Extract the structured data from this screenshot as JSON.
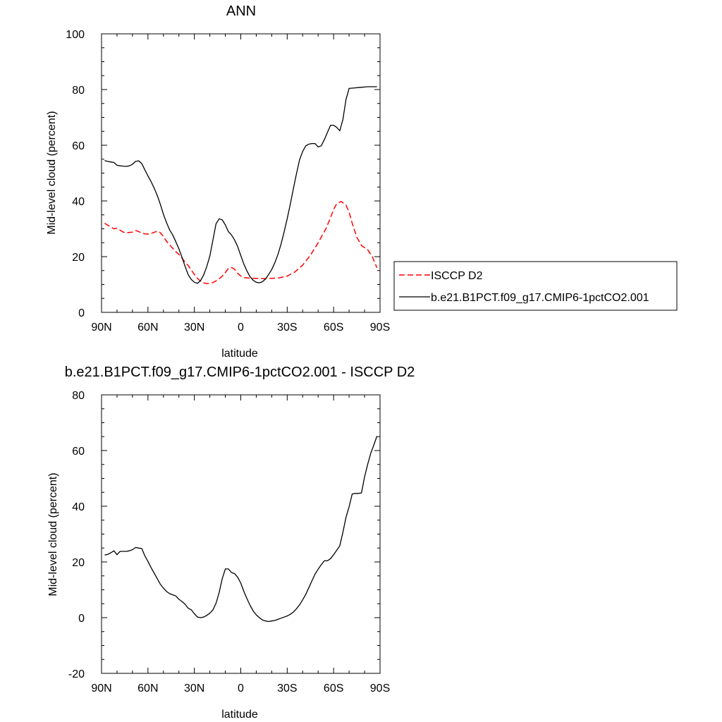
{
  "chart_data": [
    {
      "type": "line",
      "title": "ANN",
      "xlabel": "latitude",
      "ylabel": "Mid-level cloud (percent)",
      "xlim": [
        -90,
        90
      ],
      "ylim": [
        0,
        100
      ],
      "x_ticks": [
        -90,
        -60,
        -30,
        0,
        30,
        60,
        90
      ],
      "x_tick_labels": [
        "90N",
        "60N",
        "30N",
        "0",
        "30S",
        "60S",
        "90S"
      ],
      "y_ticks": [
        0,
        20,
        40,
        60,
        80,
        100
      ],
      "y_tick_labels": [
        "0",
        "20",
        "40",
        "60",
        "80",
        "100"
      ],
      "legend": "right",
      "series": [
        {
          "name": "ISCCP D2",
          "color": "#ff0000",
          "dash": "dashed",
          "x": [
            -88,
            -86,
            -84,
            -82,
            -80,
            -78,
            -76,
            -74,
            -72,
            -70,
            -68,
            -66,
            -64,
            -62,
            -60,
            -58,
            -56,
            -54,
            -52,
            -50,
            -48,
            -46,
            -44,
            -42,
            -40,
            -38,
            -36,
            -34,
            -32,
            -30,
            -28,
            -26,
            -24,
            -22,
            -20,
            -18,
            -16,
            -14,
            -12,
            -10,
            -8,
            -6,
            -4,
            -2,
            0,
            2,
            5,
            10,
            15,
            20,
            25,
            30,
            35,
            40,
            45,
            50,
            55,
            58,
            60,
            62,
            65,
            68,
            70,
            72,
            75,
            78,
            82,
            85,
            88
          ],
          "values": [
            32,
            31.3,
            30.6,
            30,
            30.2,
            29.5,
            28.8,
            28.6,
            28.7,
            28.8,
            29.4,
            29,
            28.4,
            28.2,
            28.1,
            28.3,
            28.7,
            29.2,
            28.6,
            27.2,
            25.5,
            24.2,
            23,
            21.8,
            20.8,
            19.5,
            18,
            16.8,
            15.2,
            13.6,
            12.2,
            11.2,
            10.6,
            10.3,
            10.4,
            10.7,
            11.3,
            12,
            13,
            14.3,
            15.8,
            16.1,
            15.5,
            14,
            13,
            12.5,
            12.3,
            12.2,
            12.1,
            12.2,
            12.4,
            13,
            14.5,
            17,
            20.5,
            25,
            30,
            34,
            37,
            39,
            39.8,
            38.5,
            36,
            32,
            27,
            24,
            22.5,
            20,
            16
          ]
        },
        {
          "name": "b.e21.B1PCT.f09_g17.CMIP6-1pctCO2.001",
          "color": "#000000",
          "dash": "solid",
          "x": [
            -88,
            -86,
            -84,
            -82,
            -80,
            -78,
            -76,
            -74,
            -72,
            -70,
            -68,
            -66,
            -64,
            -62,
            -60,
            -58,
            -56,
            -54,
            -52,
            -50,
            -48,
            -46,
            -44,
            -42,
            -40,
            -38,
            -36,
            -34,
            -32,
            -30,
            -28,
            -26,
            -24,
            -22,
            -20,
            -18,
            -16,
            -14,
            -12,
            -10,
            -8,
            -6,
            -4,
            -2,
            0,
            2,
            4,
            6,
            8,
            10,
            12,
            14,
            16,
            18,
            20,
            22,
            24,
            26,
            28,
            30,
            32,
            34,
            36,
            38,
            40,
            42,
            44,
            46,
            48,
            50,
            52,
            54,
            56,
            58,
            60,
            62,
            64,
            66,
            68,
            70,
            72,
            74,
            76,
            78,
            80,
            82,
            84,
            86,
            88
          ],
          "values": [
            54.5,
            54.2,
            54,
            53.8,
            52.8,
            52.6,
            52.5,
            52.4,
            52.6,
            53.2,
            54.2,
            54.4,
            53.4,
            51.2,
            49,
            47,
            44.6,
            42,
            38.8,
            35.2,
            32.2,
            29.6,
            27.8,
            25.4,
            22.8,
            19.8,
            16.5,
            13.5,
            11.8,
            10.8,
            10.4,
            11.4,
            13.4,
            16.4,
            20.2,
            26,
            31.8,
            33.6,
            33.2,
            31.4,
            29,
            27.8,
            26,
            23.6,
            20.4,
            17.3,
            14.8,
            12.8,
            11.5,
            10.8,
            10.6,
            11,
            12,
            13.6,
            15.4,
            17.8,
            20.8,
            24.5,
            28.8,
            33.6,
            38.8,
            44.4,
            49.8,
            54.8,
            57.8,
            59.8,
            60.4,
            60.6,
            60.6,
            59.4,
            59.8,
            62,
            64.6,
            67.2,
            67.2,
            66.4,
            65.2,
            69.2,
            76.4,
            80.4,
            80.5,
            80.6,
            80.7,
            80.8,
            80.9,
            81,
            81,
            81,
            81
          ]
        }
      ]
    },
    {
      "type": "line",
      "title": "b.e21.B1PCT.f09_g17.CMIP6-1pctCO2.001 - ISCCP D2",
      "xlabel": "latitude",
      "ylabel": "Mid-level cloud (percent)",
      "xlim": [
        -90,
        90
      ],
      "ylim": [
        -20,
        80
      ],
      "x_ticks": [
        -90,
        -60,
        -30,
        0,
        30,
        60,
        90
      ],
      "x_tick_labels": [
        "90N",
        "60N",
        "30N",
        "0",
        "30S",
        "60S",
        "90S"
      ],
      "y_ticks": [
        -20,
        0,
        20,
        40,
        60,
        80
      ],
      "y_tick_labels": [
        "-20",
        "0",
        "20",
        "40",
        "60",
        "80"
      ],
      "series": [
        {
          "color": "#000000",
          "dash": "solid",
          "x": [
            -88,
            -86,
            -84,
            -82,
            -80,
            -78,
            -76,
            -74,
            -72,
            -70,
            -68,
            -66,
            -64,
            -62,
            -60,
            -58,
            -56,
            -54,
            -52,
            -50,
            -48,
            -46,
            -44,
            -42,
            -40,
            -38,
            -36,
            -34,
            -32,
            -30,
            -28,
            -26,
            -24,
            -22,
            -20,
            -18,
            -16,
            -14,
            -12,
            -10,
            -8,
            -6,
            -4,
            -2,
            0,
            2,
            4,
            6,
            8,
            10,
            12,
            14,
            16,
            18,
            20,
            22,
            24,
            26,
            28,
            30,
            32,
            34,
            36,
            38,
            40,
            42,
            44,
            46,
            48,
            50,
            52,
            54,
            56,
            58,
            60,
            62,
            64,
            66,
            68,
            70,
            72,
            74,
            76,
            78,
            80,
            82,
            84,
            86,
            88
          ],
          "values": [
            22.5,
            22.7,
            23.3,
            24,
            22.6,
            23.8,
            23.8,
            23.8,
            24,
            24.4,
            25.2,
            25,
            24.8,
            22.2,
            20.2,
            18,
            16,
            14,
            12,
            10.6,
            9.4,
            8.6,
            8.2,
            7.8,
            6.6,
            5.8,
            4.8,
            3.4,
            2.8,
            1.4,
            0.2,
            0,
            0.2,
            0.8,
            1.6,
            2.8,
            5.2,
            9,
            14,
            17.5,
            17.5,
            16.2,
            15.8,
            14.5,
            12.4,
            9.4,
            6.8,
            4.4,
            2.4,
            1,
            0,
            -0.8,
            -1.2,
            -1.4,
            -1.2,
            -1,
            -0.6,
            -0.2,
            0.2,
            0.6,
            1.2,
            2,
            3.2,
            4.6,
            6.4,
            8.4,
            10.8,
            13.2,
            15.6,
            17.4,
            19,
            20.4,
            20.4,
            21.2,
            22.6,
            24.2,
            25.8,
            30.6,
            36,
            39.8,
            44.4,
            44.6,
            44.6,
            44.8,
            50.6,
            55,
            59,
            62,
            65.2
          ]
        }
      ]
    }
  ]
}
